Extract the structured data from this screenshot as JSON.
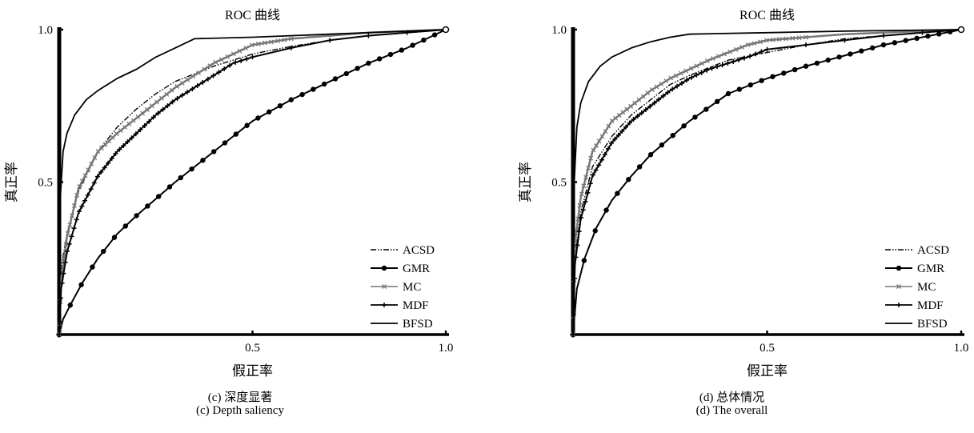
{
  "chart_data": [
    {
      "type": "line",
      "title": "ROC 曲线",
      "xlabel": "假正率",
      "ylabel": "真正率",
      "caption_cn": "(c) 深度显著",
      "caption_en": "(c) Depth saliency",
      "xlim": [
        0,
        1
      ],
      "ylim": [
        0,
        1
      ],
      "x_ticks": [
        "0.5",
        "1.0"
      ],
      "y_ticks": [
        "0.5",
        "1.0"
      ],
      "legend_position": "bottom-right",
      "series": [
        {
          "name": "ACSD",
          "style": "dashdot",
          "color": "#000000",
          "x": [
            0,
            0.005,
            0.02,
            0.05,
            0.1,
            0.15,
            0.2,
            0.25,
            0.3,
            0.4,
            0.5,
            0.6,
            0.7,
            0.8,
            0.9,
            1.0
          ],
          "y": [
            0,
            0.22,
            0.33,
            0.47,
            0.6,
            0.68,
            0.74,
            0.79,
            0.83,
            0.88,
            0.92,
            0.945,
            0.965,
            0.98,
            0.99,
            1.0
          ]
        },
        {
          "name": "GMR",
          "style": "circle",
          "color": "#000000",
          "x": [
            0,
            0.01,
            0.03,
            0.06,
            0.1,
            0.15,
            0.2,
            0.3,
            0.4,
            0.5,
            0.6,
            0.7,
            0.8,
            0.9,
            1.0
          ],
          "y": [
            0,
            0.05,
            0.1,
            0.17,
            0.25,
            0.33,
            0.39,
            0.5,
            0.6,
            0.7,
            0.77,
            0.83,
            0.89,
            0.94,
            1.0
          ]
        },
        {
          "name": "MC",
          "style": "x",
          "color": "#777777",
          "x": [
            0,
            0.005,
            0.02,
            0.05,
            0.1,
            0.15,
            0.2,
            0.25,
            0.3,
            0.35,
            0.4,
            0.45,
            0.5,
            0.6,
            0.7,
            0.8,
            0.9,
            1.0
          ],
          "y": [
            0,
            0.18,
            0.32,
            0.48,
            0.6,
            0.66,
            0.71,
            0.76,
            0.81,
            0.85,
            0.89,
            0.92,
            0.95,
            0.97,
            0.98,
            0.99,
            0.995,
            1.0
          ]
        },
        {
          "name": "MDF",
          "style": "plus",
          "color": "#000000",
          "x": [
            0,
            0.005,
            0.02,
            0.05,
            0.1,
            0.15,
            0.2,
            0.25,
            0.3,
            0.35,
            0.4,
            0.45,
            0.5,
            0.6,
            0.7,
            0.8,
            0.9,
            1.0
          ],
          "y": [
            0,
            0.15,
            0.27,
            0.4,
            0.52,
            0.6,
            0.66,
            0.72,
            0.77,
            0.81,
            0.85,
            0.89,
            0.91,
            0.94,
            0.965,
            0.98,
            0.99,
            1.0
          ]
        },
        {
          "name": "BFSD",
          "style": "solid",
          "color": "#000000",
          "x": [
            0,
            0.003,
            0.01,
            0.02,
            0.04,
            0.07,
            0.1,
            0.15,
            0.2,
            0.25,
            0.3,
            0.35,
            0.5,
            0.7,
            1.0
          ],
          "y": [
            0,
            0.45,
            0.6,
            0.66,
            0.72,
            0.77,
            0.8,
            0.84,
            0.87,
            0.91,
            0.94,
            0.97,
            0.975,
            0.985,
            1.0
          ]
        }
      ]
    },
    {
      "type": "line",
      "title": "ROC 曲线",
      "xlabel": "假正率",
      "ylabel": "真正率",
      "caption_cn": "(d) 总体情况",
      "caption_en": "(d) The overall",
      "xlim": [
        0,
        1
      ],
      "ylim": [
        0,
        1
      ],
      "x_ticks": [
        "0.5",
        "1.0"
      ],
      "y_ticks": [
        "0.5",
        "1.0"
      ],
      "legend_position": "bottom-right",
      "series": [
        {
          "name": "ACSD",
          "style": "dashdot",
          "color": "#000000",
          "x": [
            0,
            0.005,
            0.02,
            0.05,
            0.1,
            0.15,
            0.2,
            0.25,
            0.3,
            0.4,
            0.5,
            0.6,
            0.7,
            0.8,
            0.9,
            1.0
          ],
          "y": [
            0,
            0.25,
            0.4,
            0.55,
            0.65,
            0.72,
            0.77,
            0.82,
            0.85,
            0.9,
            0.925,
            0.95,
            0.97,
            0.98,
            0.99,
            1.0
          ]
        },
        {
          "name": "GMR",
          "style": "circle",
          "color": "#000000",
          "x": [
            0,
            0.01,
            0.03,
            0.06,
            0.1,
            0.15,
            0.2,
            0.3,
            0.4,
            0.5,
            0.6,
            0.7,
            0.8,
            0.9,
            1.0
          ],
          "y": [
            0,
            0.15,
            0.25,
            0.35,
            0.44,
            0.52,
            0.59,
            0.7,
            0.79,
            0.84,
            0.88,
            0.915,
            0.95,
            0.975,
            1.0
          ]
        },
        {
          "name": "MC",
          "style": "x",
          "color": "#777777",
          "x": [
            0,
            0.005,
            0.02,
            0.05,
            0.1,
            0.15,
            0.2,
            0.25,
            0.3,
            0.35,
            0.4,
            0.45,
            0.5,
            0.6,
            0.7,
            0.8,
            0.9,
            1.0
          ],
          "y": [
            0,
            0.3,
            0.45,
            0.6,
            0.7,
            0.75,
            0.8,
            0.84,
            0.87,
            0.9,
            0.925,
            0.95,
            0.965,
            0.975,
            0.985,
            0.99,
            0.995,
            1.0
          ]
        },
        {
          "name": "MDF",
          "style": "plus",
          "color": "#000000",
          "x": [
            0,
            0.005,
            0.02,
            0.05,
            0.1,
            0.15,
            0.2,
            0.25,
            0.3,
            0.35,
            0.4,
            0.45,
            0.5,
            0.6,
            0.7,
            0.8,
            0.9,
            1.0
          ],
          "y": [
            0,
            0.23,
            0.38,
            0.52,
            0.63,
            0.7,
            0.75,
            0.8,
            0.84,
            0.87,
            0.89,
            0.91,
            0.935,
            0.95,
            0.965,
            0.98,
            0.99,
            1.0
          ]
        },
        {
          "name": "BFSD",
          "style": "solid",
          "color": "#000000",
          "x": [
            0,
            0.003,
            0.01,
            0.02,
            0.04,
            0.07,
            0.1,
            0.15,
            0.2,
            0.25,
            0.3,
            0.5,
            0.7,
            1.0
          ],
          "y": [
            0,
            0.5,
            0.68,
            0.76,
            0.83,
            0.88,
            0.91,
            0.94,
            0.96,
            0.975,
            0.985,
            0.99,
            0.995,
            1.0
          ]
        }
      ]
    }
  ]
}
